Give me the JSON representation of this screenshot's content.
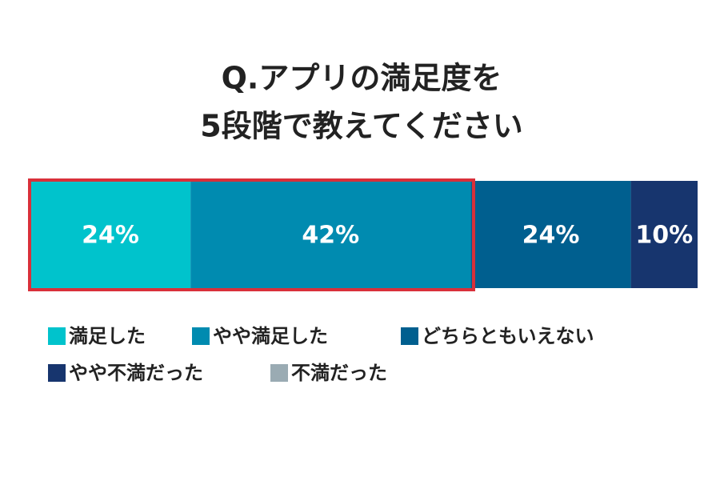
{
  "chart_data": {
    "type": "bar",
    "orientation": "horizontal",
    "stacked": true,
    "title": [
      "Q.アプリの満足度を",
      "5段階で教えてください"
    ],
    "xlim": [
      0,
      100
    ],
    "series": [
      {
        "name": "満足した",
        "color": "#00c3cc",
        "values": [
          24
        ],
        "value_labels": [
          "24%"
        ]
      },
      {
        "name": "やや満足した",
        "color": "#008bb0",
        "values": [
          42
        ],
        "value_labels": [
          "42%"
        ]
      },
      {
        "name": "どちらともいえない",
        "color": "#005f8f",
        "values": [
          24
        ],
        "value_labels": [
          "24%"
        ]
      },
      {
        "name": "やや不満だった",
        "color": "#17356e",
        "values": [
          10
        ],
        "value_labels": [
          "10%"
        ]
      },
      {
        "name": "不満だった",
        "color": "#9aabb3",
        "values": [
          0
        ]
      }
    ]
  }
}
